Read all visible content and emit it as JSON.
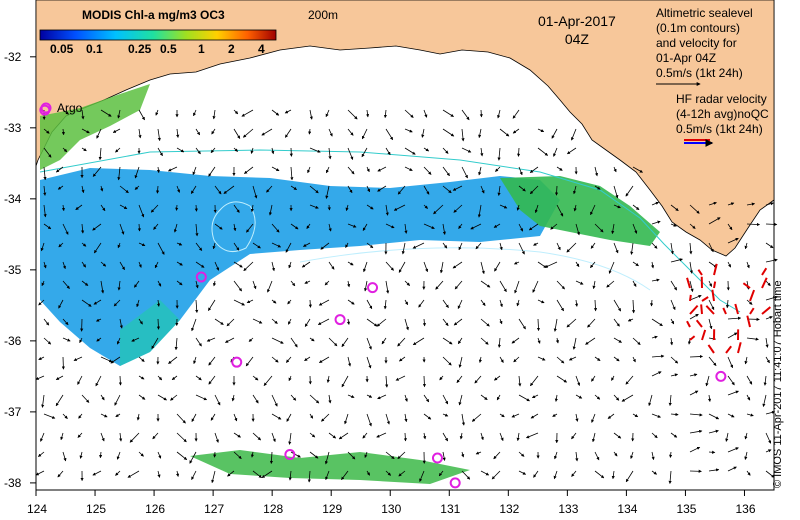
{
  "legend": {
    "title": "MODIS Chl-a mg/m3 OC3",
    "ticks": [
      "0.05",
      "0.1",
      "0.25",
      "0.5",
      "1",
      "2",
      "4"
    ]
  },
  "contour_label": "200m",
  "date_line1": "01-Apr-2017",
  "date_line2": "04Z",
  "altimetry_lines": [
    "Altimetric sealevel",
    "(0.1m contours)",
    "and velocity for",
    "01-Apr 04Z",
    "0.5m/s (1kt 24h)"
  ],
  "hf_lines": [
    "HF radar velocity",
    "(4-12h avg)noQC",
    "0.5m/s (1kt 24h)"
  ],
  "argo_label": "Argo",
  "credit": "© IMOS 11-Apr-2017 11:41:07 Hobart time",
  "x_ticks": [
    "124",
    "125",
    "126",
    "127",
    "128",
    "129",
    "130",
    "131",
    "132",
    "133",
    "134",
    "135",
    "136"
  ],
  "y_ticks": [
    "-32",
    "-33",
    "-34",
    "-35",
    "-36",
    "-37",
    "-38"
  ],
  "colors": {
    "land": "#f7c79a",
    "argo": "#e020e0",
    "hf_vector": "#e00000",
    "contour": "#33cccc"
  },
  "argo_floats": [
    {
      "lon": 124.15,
      "lat": -32.75
    },
    {
      "lon": 126.8,
      "lat": -35.1
    },
    {
      "lon": 129.7,
      "lat": -35.25
    },
    {
      "lon": 129.15,
      "lat": -35.7
    },
    {
      "lon": 127.4,
      "lat": -36.3
    },
    {
      "lon": 135.6,
      "lat": -36.5
    },
    {
      "lon": 128.3,
      "lat": -37.6
    },
    {
      "lon": 130.8,
      "lat": -37.65
    },
    {
      "lon": 131.1,
      "lat": -38.0
    }
  ]
}
